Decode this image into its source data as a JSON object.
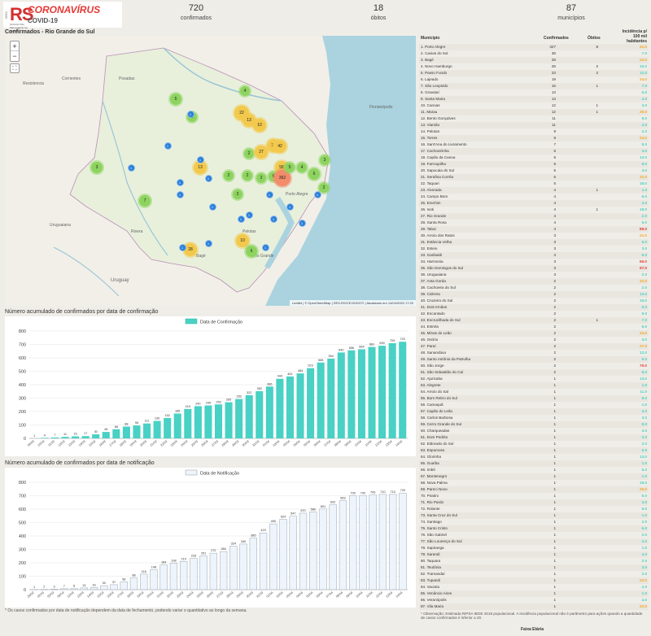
{
  "header": {
    "logo_rs": "RS",
    "logo_gov": "GOV",
    "logo_sub": "MUDAR PRA MELHORAR NA SAÚDE",
    "title": "CORONAVÍRUS",
    "subtitle": "COVID-19"
  },
  "kpis": [
    {
      "value": "720",
      "label": "confirmados"
    },
    {
      "value": "18",
      "label": "óbitos"
    },
    {
      "value": "87",
      "label": "municípios"
    }
  ],
  "map": {
    "title": "Confirmados - Rio Grande do Sul",
    "attribution": "Leaflet | © OpenStreetMap | SES-RS/CEVS/DGTI | Atualizado em 14/04/2020 17:20",
    "zoom_in": "+",
    "zoom_out": "−",
    "fullscreen": "⛶",
    "labels": [
      "Corrientes",
      "Resistencia",
      "Posadas",
      "Rivera",
      "Uruguaiana",
      "Bagé",
      "Uruguay",
      "Florianópolis",
      "Porto Alegre",
      "Pelotas",
      "Rio Grande"
    ],
    "clusters": [
      {
        "label": "5",
        "color": "#8dd35f"
      },
      {
        "label": "4",
        "color": "#8dd35f"
      },
      {
        "label": "2",
        "color": "#8dd35f"
      },
      {
        "label": "22",
        "color": "#f2c94c"
      },
      {
        "label": "13",
        "color": "#f2c94c"
      },
      {
        "label": "10",
        "color": "#f2c94c"
      },
      {
        "label": "3",
        "color": "#8dd35f"
      },
      {
        "label": "2",
        "color": "#8dd35f"
      },
      {
        "label": "27",
        "color": "#f2c94c"
      },
      {
        "label": "16",
        "color": "#f2c94c"
      },
      {
        "label": "42",
        "color": "#f2c94c"
      },
      {
        "label": "13",
        "color": "#f2c94c"
      },
      {
        "label": "2",
        "color": "#8dd35f"
      },
      {
        "label": "2",
        "color": "#8dd35f"
      },
      {
        "label": "2",
        "color": "#8dd35f"
      },
      {
        "label": "6",
        "color": "#8dd35f"
      },
      {
        "label": "58",
        "color": "#f2c94c"
      },
      {
        "label": "362",
        "color": "#f28c6b"
      },
      {
        "label": "5",
        "color": "#8dd35f"
      },
      {
        "label": "4",
        "color": "#8dd35f"
      },
      {
        "label": "6",
        "color": "#8dd35f"
      },
      {
        "label": "3",
        "color": "#8dd35f"
      },
      {
        "label": "7",
        "color": "#8dd35f"
      },
      {
        "label": "2",
        "color": "#8dd35f"
      },
      {
        "label": "28",
        "color": "#f2c94c"
      },
      {
        "label": "10",
        "color": "#f2c94c"
      },
      {
        "label": "6",
        "color": "#8dd35f"
      },
      {
        "label": "2",
        "color": "#8dd35f"
      }
    ],
    "singles": [
      "1",
      "1",
      "1",
      "1",
      "1",
      "1",
      "1",
      "1",
      "1",
      "1",
      "1",
      "1",
      "1",
      "1",
      "1",
      "1",
      "1",
      "1"
    ]
  },
  "chart_data": [
    {
      "type": "bar",
      "title": "Número acumulado de confirmados por data de confirmação",
      "legend": "Data de Confirmação",
      "color": "#48d1c4",
      "categories": [
        "09/03",
        "10/03",
        "11/03",
        "12/03",
        "13/03",
        "14/03",
        "15/03",
        "16/03",
        "17/03",
        "18/03",
        "19/03",
        "20/03",
        "21/03",
        "22/03",
        "23/03",
        "24/03",
        "25/03",
        "26/03",
        "27/03",
        "28/03",
        "29/03",
        "30/03",
        "31/03",
        "01/04",
        "02/04",
        "03/04",
        "04/04",
        "05/04",
        "06/04",
        "07/04",
        "08/04",
        "09/04",
        "10/04",
        "11/04",
        "12/04",
        "13/04",
        "14/04"
      ],
      "values": [
        1,
        4,
        7,
        11,
        15,
        17,
        30,
        48,
        68,
        88,
        96,
        111,
        130,
        152,
        185,
        219,
        240,
        245,
        253,
        269,
        293,
        322,
        352,
        386,
        444,
        461,
        484,
        523,
        565,
        594,
        640,
        656,
        664,
        681,
        690,
        709,
        720
      ],
      "ylim": [
        0,
        800
      ],
      "yticks": [
        0,
        100,
        200,
        300,
        400,
        500,
        600,
        700,
        800
      ]
    },
    {
      "type": "bar",
      "title": "Número acumulado de confirmados por data de notificação",
      "legend": "Data de Notificação",
      "color": "#eef4fb",
      "categories": [
        "29/02",
        "02/03",
        "03/03",
        "09/03",
        "12/03",
        "13/03",
        "14/03",
        "15/03",
        "16/03",
        "17/03",
        "18/03",
        "19/03",
        "20/03",
        "21/03",
        "22/03",
        "23/03",
        "24/03",
        "25/03",
        "26/03",
        "27/03",
        "28/03",
        "29/03",
        "30/03",
        "31/03",
        "01/04",
        "02/04",
        "03/04",
        "04/04",
        "05/04",
        "06/04",
        "07/04",
        "08/04",
        "09/04",
        "10/04",
        "11/04",
        "12/04",
        "13/04",
        "14/04"
      ],
      "values": [
        1,
        2,
        3,
        7,
        8,
        13,
        16,
        30,
        37,
        58,
        88,
        116,
        148,
        184,
        198,
        210,
        233,
        251,
        272,
        284,
        324,
        340,
        385,
        423,
        490,
        524,
        547,
        570,
        580,
        601,
        632,
        663,
        700,
        700,
        705,
        710,
        710,
        720
      ],
      "ylim": [
        0,
        800
      ],
      "yticks": [
        0,
        100,
        200,
        300,
        400,
        500,
        600,
        700,
        800
      ]
    }
  ],
  "footnote": "* Os casos confirmados por data de notificação dependem da data de fechamento, podendo variar o quantitativo ao longo da semana.",
  "table": {
    "headers": [
      "Município",
      "Confirmados",
      "Óbitos",
      "Incidência p/ 100 mil habitantes"
    ],
    "rows": [
      [
        "1. Porto Alegre",
        "327",
        "8",
        "22.0",
        "#f5a623"
      ],
      [
        "2. Caxias do Sul",
        "36",
        "",
        "7.0",
        "#48d1c4"
      ],
      [
        "3. Bagé",
        "28",
        "",
        "22.0",
        "#f5a623"
      ],
      [
        "4. Novo Hamburgo",
        "26",
        "2",
        "10.0",
        "#48d1c4"
      ],
      [
        "5. Passo Fundo",
        "23",
        "2",
        "11.0",
        "#48d1c4"
      ],
      [
        "6. Lajeado",
        "19",
        "",
        "24.0",
        "#f5a623"
      ],
      [
        "7. São Leopoldo",
        "16",
        "1",
        "7.0",
        "#48d1c4"
      ],
      [
        "8. Gravataí",
        "13",
        "",
        "5.0",
        "#48d1c4"
      ],
      [
        "9. Santa Maria",
        "13",
        "",
        "4.0",
        "#48d1c4"
      ],
      [
        "10. Canoas",
        "12",
        "1",
        "3.0",
        "#48d1c4"
      ],
      [
        "11. Marau",
        "12",
        "1",
        "29.0",
        "#f5a623"
      ],
      [
        "12. Bento Gonçalves",
        "11",
        "",
        "9.0",
        "#48d1c4"
      ],
      [
        "13. Viamão",
        "11",
        "",
        "4.0",
        "#48d1c4"
      ],
      [
        "14. Pelotas",
        "9",
        "",
        "2.0",
        "#48d1c4"
      ],
      [
        "15. Torres",
        "8",
        "",
        "24.0",
        "#f5a623"
      ],
      [
        "16. Sant'Ana do Livramento",
        "7",
        "",
        "8.0",
        "#48d1c4"
      ],
      [
        "17. Cachoeirinha",
        "6",
        "",
        "4.0",
        "#48d1c4"
      ],
      [
        "18. Capão da Canoa",
        "6",
        "",
        "12.0",
        "#48d1c4"
      ],
      [
        "19. Farroupilha",
        "6",
        "",
        "8.0",
        "#48d1c4"
      ],
      [
        "20. Sapucaia do Sul",
        "5",
        "",
        "3.0",
        "#48d1c4"
      ],
      [
        "21. Serafina Corrêa",
        "5",
        "",
        "31.0",
        "#f5a623"
      ],
      [
        "22. Taquari",
        "5",
        "",
        "18.0",
        "#48d1c4"
      ],
      [
        "23. Alvorada",
        "4",
        "1",
        "1.0",
        "#48d1c4"
      ],
      [
        "24. Campo Bom",
        "4",
        "",
        "6.0",
        "#48d1c4"
      ],
      [
        "25. Erechim",
        "4",
        "",
        "4.0",
        "#48d1c4"
      ],
      [
        "26. Ivoti",
        "4",
        "1",
        "18.0",
        "#48d1c4"
      ],
      [
        "27. Rio Grande",
        "4",
        "",
        "2.0",
        "#48d1c4"
      ],
      [
        "28. Santa Rosa",
        "4",
        "",
        "5.0",
        "#48d1c4"
      ],
      [
        "29. Tabaí",
        "4",
        "",
        "89.0",
        "#e53935"
      ],
      [
        "30. Arroio dos Ratos",
        "3",
        "",
        "21.0",
        "#f5a623"
      ],
      [
        "31. Estância Velha",
        "3",
        "",
        "6.0",
        "#48d1c4"
      ],
      [
        "32. Esteio",
        "3",
        "",
        "3.0",
        "#48d1c4"
      ],
      [
        "33. Garibaldi",
        "3",
        "",
        "9.0",
        "#48d1c4"
      ],
      [
        "34. Harmonia",
        "3",
        "",
        "65.0",
        "#e53935"
      ],
      [
        "35. São Domingos do Sul",
        "3",
        "",
        "97.0",
        "#e53935"
      ],
      [
        "36. Uruguaiana",
        "3",
        "",
        "2.0",
        "#48d1c4"
      ],
      [
        "37. Anta Gorda",
        "2",
        "",
        "32.0",
        "#f5a623"
      ],
      [
        "38. Cachoeira do Sul",
        "2",
        "",
        "2.0",
        "#48d1c4"
      ],
      [
        "39. Cidreira",
        "2",
        "",
        "13.0",
        "#48d1c4"
      ],
      [
        "40. Cruzeiro do Sul",
        "2",
        "",
        "16.0",
        "#48d1c4"
      ],
      [
        "41. Dois Irmãos",
        "2",
        "",
        "6.0",
        "#48d1c4"
      ],
      [
        "42. Encantado",
        "2",
        "",
        "9.0",
        "#48d1c4"
      ],
      [
        "43. Encruzilhada do Sul",
        "2",
        "1",
        "7.0",
        "#48d1c4"
      ],
      [
        "44. Estrela",
        "2",
        "",
        "6.0",
        "#48d1c4"
      ],
      [
        "45. Minas do Leão",
        "2",
        "",
        "24.0",
        "#f5a623"
      ],
      [
        "46. Osório",
        "2",
        "",
        "4.0",
        "#48d1c4"
      ],
      [
        "47. Paraí",
        "2",
        "",
        "27.0",
        "#f5a623"
      ],
      [
        "48. Sanandúva",
        "2",
        "",
        "12.0",
        "#48d1c4"
      ],
      [
        "49. Santo Antônio da Patrulha",
        "2",
        "",
        "5.0",
        "#48d1c4"
      ],
      [
        "50. São Jorge",
        "2",
        "",
        "70.0",
        "#e53935"
      ],
      [
        "51. São Sebastião do Caí",
        "2",
        "",
        "8.0",
        "#48d1c4"
      ],
      [
        "52. Ajuricaba",
        "1",
        "",
        "13.0",
        "#48d1c4"
      ],
      [
        "53. Alegrete",
        "1",
        "",
        "1.0",
        "#48d1c4"
      ],
      [
        "54. Arroio do Sal",
        "1",
        "",
        "11.0",
        "#48d1c4"
      ],
      [
        "55. Bom Retiro do Sul",
        "1",
        "",
        "8.0",
        "#48d1c4"
      ],
      [
        "56. Camaquã",
        "1",
        "",
        "1.0",
        "#48d1c4"
      ],
      [
        "57. Capão do Leão",
        "1",
        "",
        "4.0",
        "#48d1c4"
      ],
      [
        "58. Carlos Barbosa",
        "1",
        "",
        "3.0",
        "#48d1c4"
      ],
      [
        "59. Cerro Grande do Sul",
        "1",
        "",
        "8.0",
        "#48d1c4"
      ],
      [
        "60. Charqueadas",
        "1",
        "",
        "3.0",
        "#48d1c4"
      ],
      [
        "61. Dom Pedrito",
        "1",
        "",
        "3.0",
        "#48d1c4"
      ],
      [
        "62. Eldorado do Sul",
        "1",
        "",
        "2.0",
        "#48d1c4"
      ],
      [
        "63. Espumoso",
        "1",
        "",
        "6.0",
        "#48d1c4"
      ],
      [
        "64. Glorinha",
        "1",
        "",
        "13.0",
        "#48d1c4"
      ],
      [
        "65. Guaíba",
        "1",
        "",
        "1.0",
        "#48d1c4"
      ],
      [
        "66. Imbé",
        "1",
        "",
        "5.0",
        "#48d1c4"
      ],
      [
        "67. Montenegro",
        "1",
        "",
        "1.0",
        "#48d1c4"
      ],
      [
        "68. Nova Palma",
        "1",
        "",
        "15.0",
        "#48d1c4"
      ],
      [
        "69. Pareci Novo",
        "1",
        "",
        "26.0",
        "#f5a623"
      ],
      [
        "70. Piratini",
        "1",
        "",
        "5.0",
        "#48d1c4"
      ],
      [
        "71. Rio Pardo",
        "1",
        "",
        "3.0",
        "#48d1c4"
      ],
      [
        "72. Rolante",
        "1",
        "",
        "5.0",
        "#48d1c4"
      ],
      [
        "73. Santa Cruz do Sul",
        "1",
        "",
        "1.0",
        "#48d1c4"
      ],
      [
        "74. Santiago",
        "1",
        "",
        "2.0",
        "#48d1c4"
      ],
      [
        "75. Santo Cristo",
        "1",
        "",
        "6.0",
        "#48d1c4"
      ],
      [
        "76. São Gabriel",
        "1",
        "",
        "2.0",
        "#48d1c4"
      ],
      [
        "77. São Lourenço do Sul",
        "1",
        "",
        "2.0",
        "#48d1c4"
      ],
      [
        "78. Sapiranga",
        "1",
        "",
        "1.0",
        "#48d1c4"
      ],
      [
        "79. Sarandi",
        "1",
        "",
        "4.0",
        "#48d1c4"
      ],
      [
        "80. Taquara",
        "1",
        "",
        "2.0",
        "#48d1c4"
      ],
      [
        "81. Teutônia",
        "1",
        "",
        "3.0",
        "#48d1c4"
      ],
      [
        "82. Tramandaí",
        "1",
        "",
        "2.0",
        "#48d1c4"
      ],
      [
        "83. Tupandi",
        "1",
        "",
        "22.0",
        "#f5a623"
      ],
      [
        "84. Vacaria",
        "1",
        "",
        "2.0",
        "#48d1c4"
      ],
      [
        "85. Venâncio Aires",
        "1",
        "",
        "1.0",
        "#48d1c4"
      ],
      [
        "86. Veranópolis",
        "1",
        "",
        "4.0",
        "#48d1c4"
      ],
      [
        "87. Vila Maria",
        "1",
        "",
        "22.0",
        "#f5a623"
      ]
    ],
    "observation": "* Observação: Estimada RIPSA IBGE 2019 populacional. A incidência populacional não é parâmetro para ações quando a quantidade de casos confirmados é inferior a 20.",
    "age_title": "Faixa Etária"
  }
}
